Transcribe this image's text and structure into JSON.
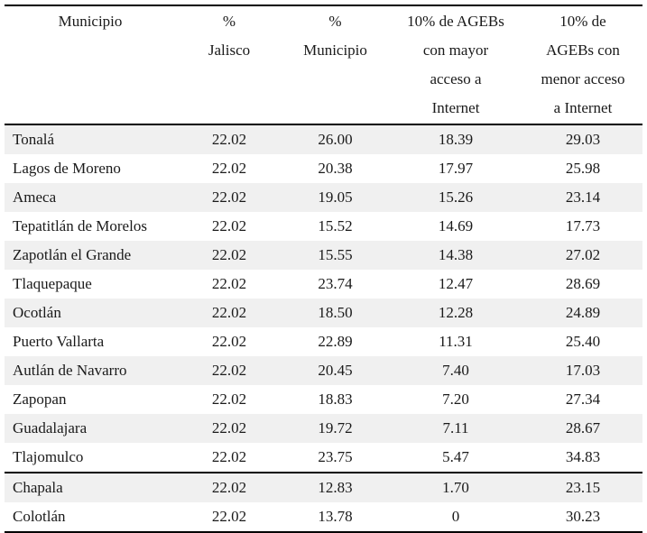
{
  "table": {
    "header": [
      {
        "lines": [
          "Municipio"
        ]
      },
      {
        "lines": [
          "%",
          "Jalisco"
        ]
      },
      {
        "lines": [
          "%",
          "Municipio"
        ]
      },
      {
        "lines": [
          "10% de AGEBs",
          "con mayor",
          "acceso a",
          "Internet"
        ]
      },
      {
        "lines": [
          "10% de",
          "AGEBs con",
          "menor acceso",
          "a Internet"
        ]
      }
    ],
    "rows": [
      [
        "Tonalá",
        "22.02",
        "26.00",
        "18.39",
        "29.03"
      ],
      [
        "Lagos de Moreno",
        "22.02",
        "20.38",
        "17.97",
        "25.98"
      ],
      [
        "Ameca",
        "22.02",
        "19.05",
        "15.26",
        "23.14"
      ],
      [
        "Tepatitlán de Morelos",
        "22.02",
        "15.52",
        "14.69",
        "17.73"
      ],
      [
        "Zapotlán el Grande",
        "22.02",
        "15.55",
        "14.38",
        "27.02"
      ],
      [
        "Tlaquepaque",
        "22.02",
        "23.74",
        "12.47",
        "28.69"
      ],
      [
        "Ocotlán",
        "22.02",
        "18.50",
        "12.28",
        "24.89"
      ],
      [
        "Puerto Vallarta",
        "22.02",
        "22.89",
        "11.31",
        "25.40"
      ],
      [
        "Autlán de Navarro",
        "22.02",
        "20.45",
        "7.40",
        "17.03"
      ],
      [
        "Zapopan",
        "22.02",
        "18.83",
        "7.20",
        "27.34"
      ],
      [
        "Guadalajara",
        "22.02",
        "19.72",
        "7.11",
        "28.67"
      ],
      [
        "Tlajomulco",
        "22.02",
        "23.75",
        "5.47",
        "34.83"
      ],
      [
        "Chapala",
        "22.02",
        "12.83",
        "1.70",
        "23.15"
      ],
      [
        "Colotlán",
        "22.02",
        "13.78",
        "0",
        "30.23"
      ]
    ]
  },
  "colors": {
    "stripe": "#f0f0f0",
    "rule": "#000000",
    "text": "#1a1a1a"
  }
}
